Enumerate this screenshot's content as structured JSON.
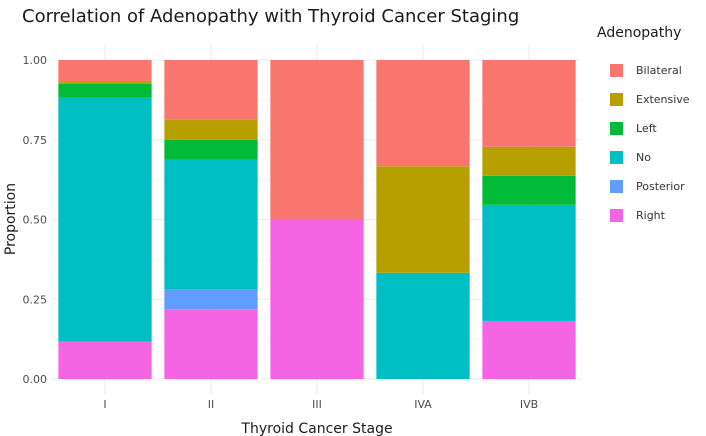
{
  "chart_data": {
    "type": "bar",
    "stacked": true,
    "title": "Correlation of Adenopathy with Thyroid Cancer Staging",
    "xlabel": "Thyroid Cancer Stage",
    "ylabel": "Proportion",
    "ylim": [
      0,
      1
    ],
    "yticks": [
      "0.00",
      "0.25",
      "0.50",
      "0.75",
      "1.00"
    ],
    "categories": [
      "I",
      "II",
      "III",
      "IVA",
      "IVB"
    ],
    "legend_title": "Adenopathy",
    "legend_position": "right",
    "grid": true,
    "series": [
      {
        "name": "Right",
        "color": "#F564E3",
        "values": [
          0.117,
          0.219,
          0.5,
          0.0,
          0.182
        ]
      },
      {
        "name": "Posterior",
        "color": "#619CFF",
        "values": [
          0.0,
          0.062,
          0.0,
          0.0,
          0.0
        ]
      },
      {
        "name": "No",
        "color": "#00BFC4",
        "values": [
          0.765,
          0.406,
          0.0,
          0.333,
          0.364
        ]
      },
      {
        "name": "Left",
        "color": "#00BA38",
        "values": [
          0.043,
          0.063,
          0.0,
          0.0,
          0.091
        ]
      },
      {
        "name": "Extensive",
        "color": "#B79F00",
        "values": [
          0.009,
          0.063,
          0.0,
          0.334,
          0.091
        ]
      },
      {
        "name": "Bilateral",
        "color": "#F8766D",
        "values": [
          0.066,
          0.187,
          0.5,
          0.333,
          0.272
        ]
      }
    ]
  }
}
